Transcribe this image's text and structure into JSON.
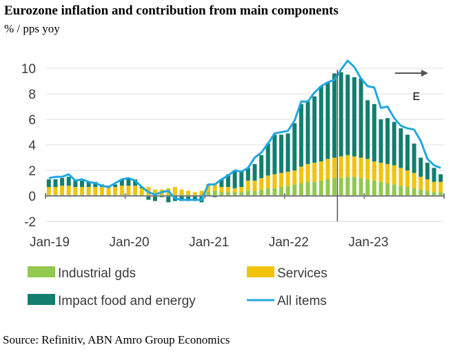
{
  "title": "Eurozone inflation and contribution from main components",
  "subtitle": "% / pps yoy",
  "source": "Source: Refinitiv, ABN Amro Group Economics",
  "chart_data": {
    "type": "bar",
    "stacked": true,
    "ylim": [
      -2,
      10
    ],
    "yticks": [
      "10",
      "8",
      "6",
      "4",
      "2",
      "0",
      "-2"
    ],
    "ytick_values": [
      10,
      8,
      6,
      4,
      2,
      0,
      -2
    ],
    "xtick_labels": [
      "Jan-19",
      "Jan-20",
      "Jan-21",
      "Jan-22",
      "Jan-23"
    ],
    "xtick_indices": [
      0,
      12,
      24,
      36,
      48
    ],
    "periods": 60,
    "estimate_start_index": 44,
    "estimate_label": "E",
    "series": [
      {
        "name": "Industrial gds",
        "color": "#92c84e",
        "values": [
          0.1,
          0.1,
          0.1,
          0.1,
          0.1,
          0.1,
          0.1,
          0.1,
          0.1,
          0.1,
          0.1,
          0.1,
          0.1,
          0.1,
          0.1,
          0.1,
          0.1,
          0.1,
          0.1,
          0.1,
          0.1,
          0.1,
          0.1,
          0.1,
          0.3,
          0.4,
          0.3,
          0.3,
          0.3,
          0.3,
          0.4,
          0.4,
          0.5,
          0.6,
          0.6,
          0.7,
          0.8,
          0.9,
          1.0,
          1.1,
          1.1,
          1.2,
          1.3,
          1.4,
          1.4,
          1.5,
          1.5,
          1.4,
          1.3,
          1.2,
          1.1,
          1.0,
          0.9,
          0.8,
          0.7,
          0.6,
          0.5,
          0.4,
          0.3,
          0.3
        ]
      },
      {
        "name": "Services",
        "color": "#f1c30c",
        "values": [
          0.6,
          0.6,
          0.7,
          0.7,
          0.6,
          0.6,
          0.6,
          0.6,
          0.6,
          0.6,
          0.6,
          0.7,
          0.7,
          0.7,
          0.5,
          0.6,
          0.4,
          0.4,
          0.5,
          0.6,
          0.4,
          0.3,
          0.2,
          0.3,
          0.6,
          0.6,
          0.4,
          0.4,
          0.3,
          0.4,
          0.8,
          0.8,
          0.9,
          1.0,
          1.1,
          1.1,
          1.1,
          1.1,
          1.3,
          1.4,
          1.5,
          1.5,
          1.6,
          1.6,
          1.7,
          1.7,
          1.6,
          1.6,
          1.6,
          1.5,
          1.5,
          1.5,
          1.5,
          1.4,
          1.3,
          1.2,
          1.0,
          0.9,
          0.8,
          0.8
        ]
      },
      {
        "name": "Impact food and energy",
        "color": "#127e70",
        "values": [
          0.6,
          0.6,
          0.6,
          0.7,
          0.6,
          0.5,
          0.4,
          0.4,
          0.2,
          0.1,
          0.2,
          0.5,
          0.6,
          0.5,
          0.1,
          -0.3,
          -0.4,
          -0.1,
          -0.5,
          -0.4,
          -0.4,
          -0.4,
          -0.4,
          -0.5,
          0.0,
          -0.1,
          0.6,
          1.0,
          1.4,
          1.2,
          1.0,
          1.3,
          1.8,
          2.5,
          3.1,
          3.0,
          3.0,
          3.7,
          4.9,
          4.9,
          5.2,
          5.9,
          6.0,
          6.6,
          6.6,
          6.3,
          6.2,
          6.2,
          4.6,
          4.5,
          3.4,
          3.6,
          3.4,
          3.1,
          2.8,
          2.3,
          1.5,
          1.3,
          1.1,
          0.6
        ]
      },
      {
        "name": "All items",
        "color": "#21a8e0",
        "kind": "line",
        "values": [
          1.4,
          1.5,
          1.5,
          1.7,
          1.2,
          1.3,
          1.1,
          1.0,
          0.8,
          0.7,
          1.0,
          1.3,
          1.4,
          1.2,
          0.7,
          0.3,
          0.1,
          0.3,
          0.4,
          -0.2,
          -0.3,
          -0.3,
          -0.3,
          -0.3,
          0.9,
          0.9,
          1.3,
          1.6,
          2.0,
          1.9,
          2.2,
          3.0,
          3.4,
          4.1,
          4.9,
          5.0,
          5.1,
          5.9,
          7.4,
          7.4,
          8.1,
          8.6,
          8.9,
          9.1,
          9.9,
          10.6,
          10.1,
          9.2,
          8.6,
          8.5,
          6.9,
          7.0,
          6.1,
          5.5,
          5.3,
          5.2,
          4.3,
          2.9,
          2.4,
          2.2
        ]
      }
    ],
    "legend": [
      "Industrial gds",
      "Services",
      "Impact food and energy",
      "All items"
    ],
    "legend_position": "bottom"
  }
}
